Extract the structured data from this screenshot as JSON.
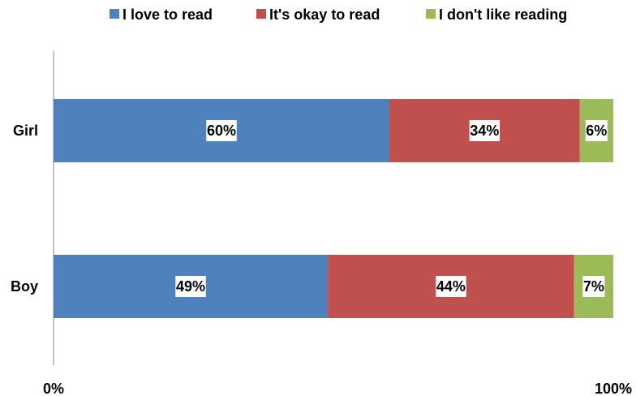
{
  "chart_data": {
    "type": "bar",
    "orientation": "horizontal",
    "stacked": "percent",
    "categories": [
      "Girl",
      "Boy"
    ],
    "series": [
      {
        "name": "I love to read",
        "color": "#4F81BD",
        "values": [
          60,
          49
        ],
        "labels": [
          "60%",
          "49%"
        ]
      },
      {
        "name": "It's okay to read",
        "color": "#C0504D",
        "values": [
          34,
          44
        ],
        "labels": [
          "34%",
          "44%"
        ]
      },
      {
        "name": "I don't like reading",
        "color": "#9BBB59",
        "values": [
          6,
          7
        ],
        "labels": [
          "6%",
          "7%"
        ]
      }
    ],
    "xlim": [
      0,
      100
    ],
    "x_ticks": [
      "0%",
      "100%"
    ],
    "legend_position": "top",
    "grid": false,
    "title": "",
    "xlabel": "",
    "ylabel": ""
  }
}
